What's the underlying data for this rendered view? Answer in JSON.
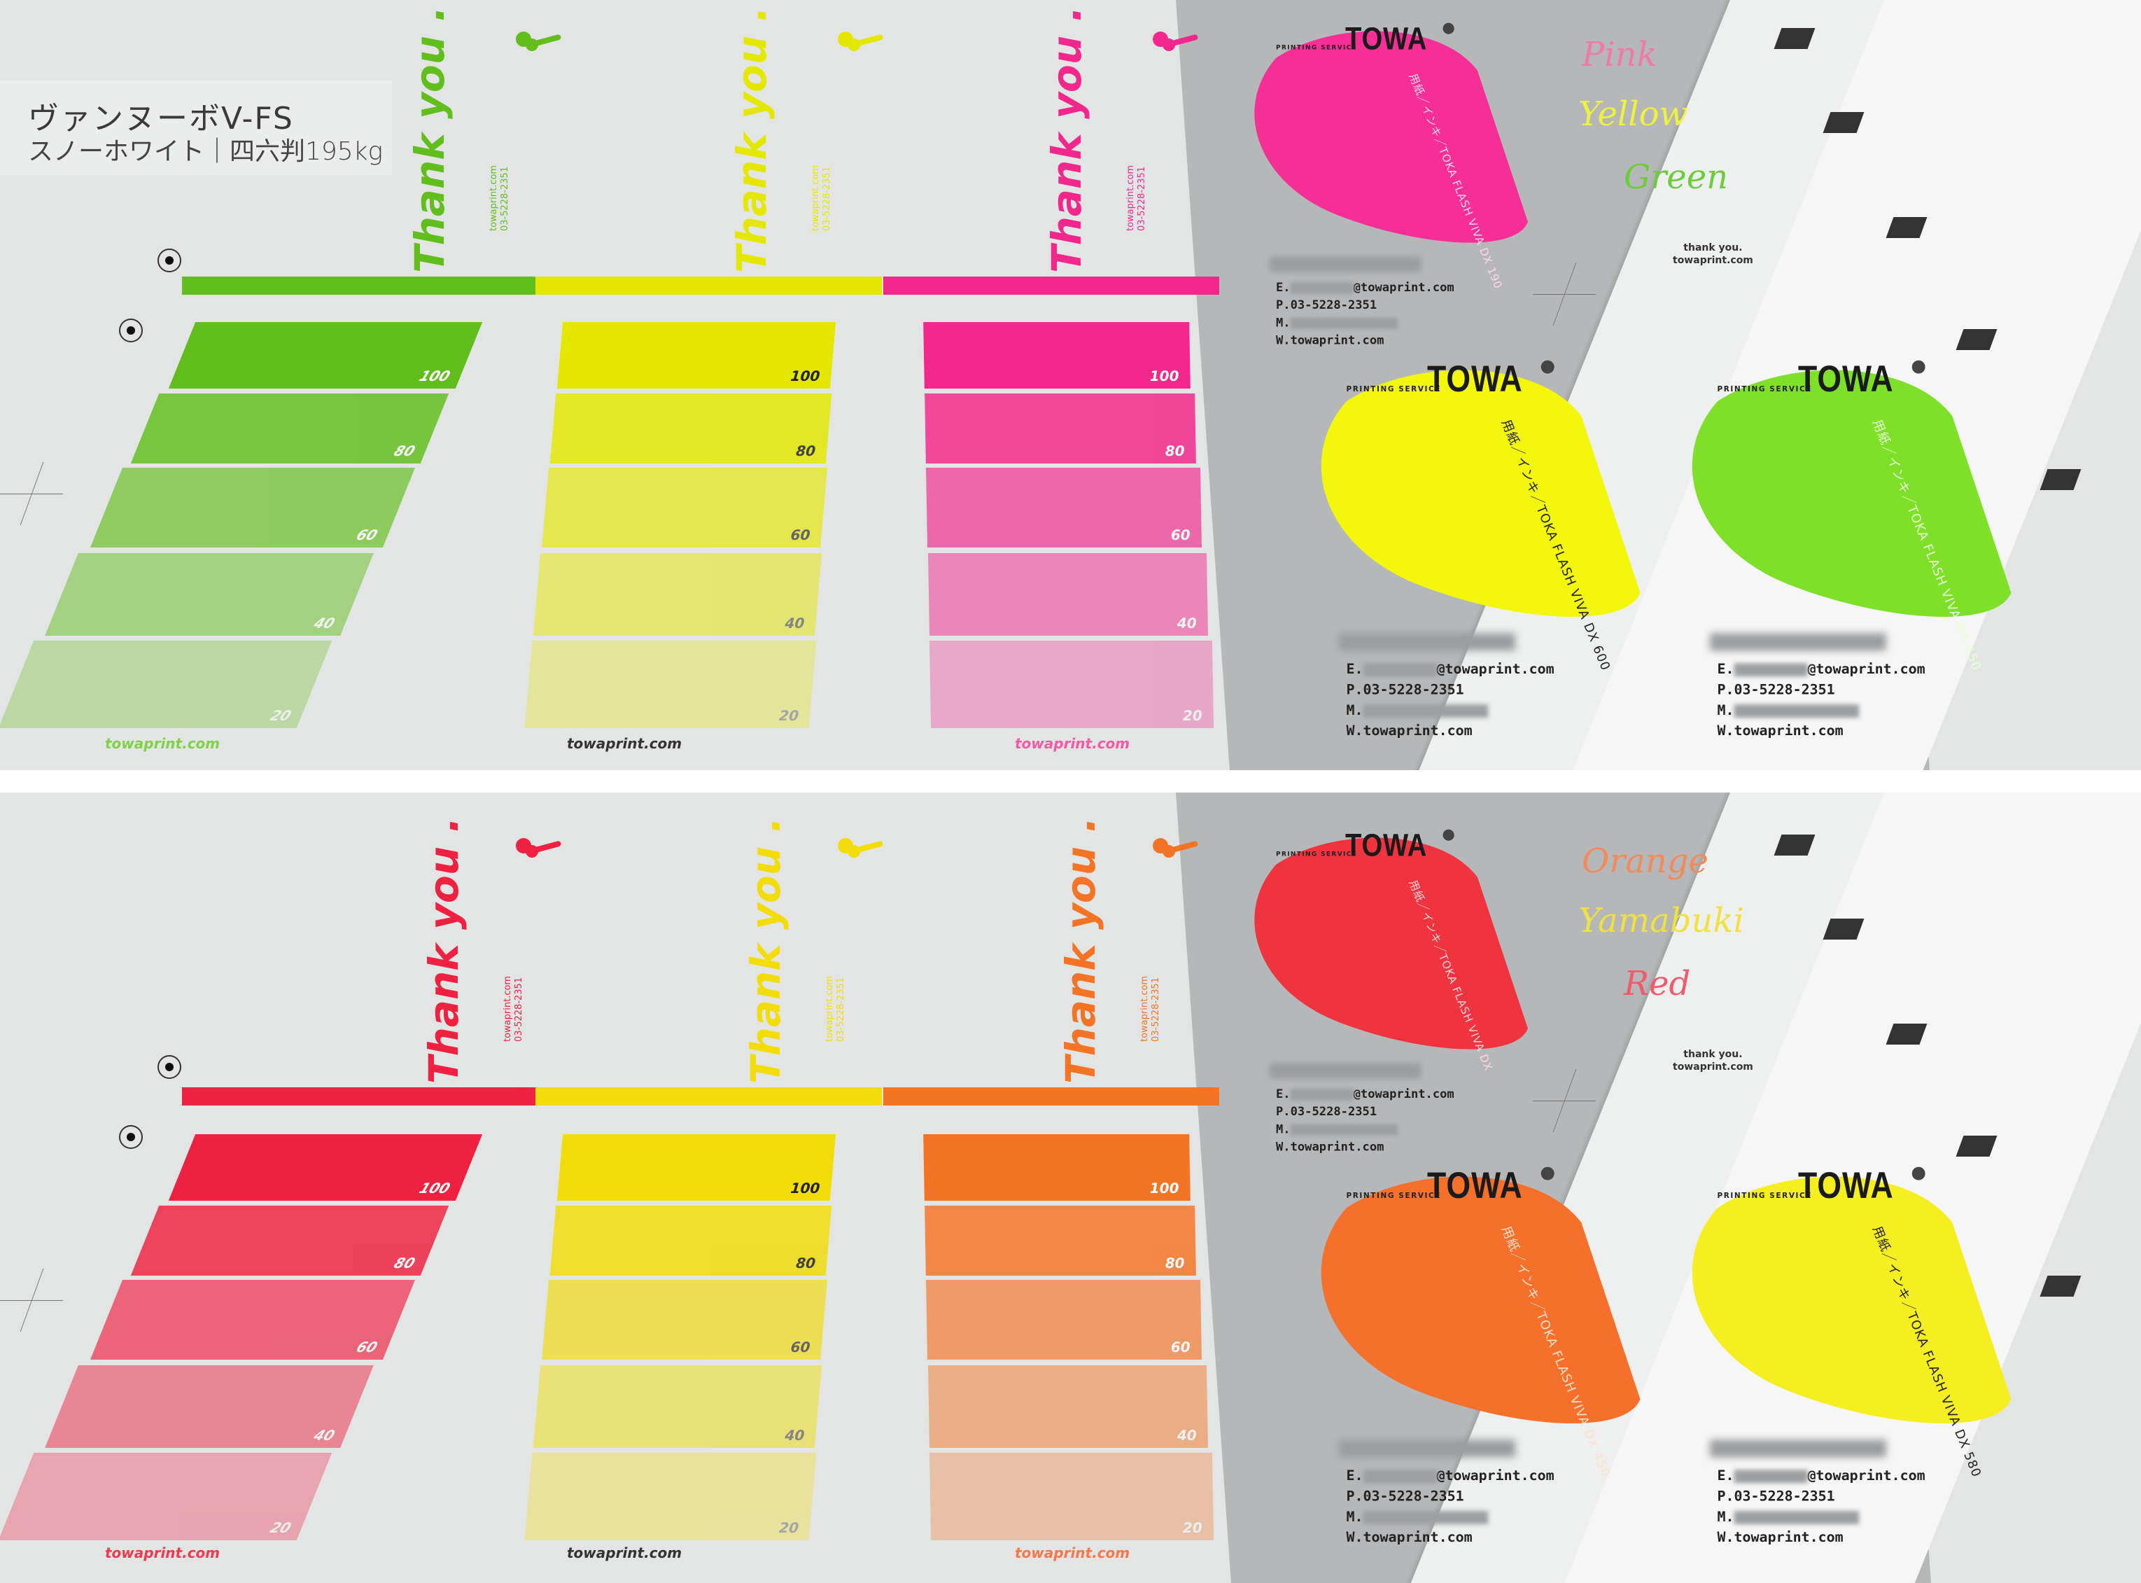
{
  "label": {
    "title": "ヴァンヌーボV-FS",
    "subtitle": "スノーホワイト｜四六判195kg"
  },
  "panels": [
    {
      "id": "top",
      "inks": [
        {
          "name": "green",
          "color": "#62be1c",
          "text_color": "#ffffff",
          "footer_color": "#7fd14a"
        },
        {
          "name": "yellow",
          "color": "#e4e800",
          "text_color": "#222222",
          "footer_color": "#333333"
        },
        {
          "name": "pink",
          "color": "#f2278c",
          "text_color": "#ffffff",
          "footer_color": "#f25aa5"
        }
      ],
      "thank_you": {
        "text": "Thank you .",
        "lines": [
          "towaprint.com",
          "03-5228-2351"
        ]
      },
      "tints": [
        "100",
        "80",
        "60",
        "40",
        "20"
      ],
      "tint_values": [
        100,
        80,
        60,
        40,
        20
      ],
      "footer": "towaprint.com",
      "cards": [
        {
          "color": "#f52f96",
          "ink_text": "用紙／インキ／TOKA FLASH VIVA DX 190",
          "ink_text_color": "#ffd6ea"
        },
        {
          "color": "#f2f70c",
          "ink_text": "用紙／インキ／TOKA FLASH VIVA DX 600",
          "ink_text_color": "#222222"
        },
        {
          "color": "#7fe02a",
          "ink_text": "用紙／インキ／TOKA FLASH VIVA DX 650",
          "ink_text_color": "#e8ffd4"
        }
      ],
      "script_words": [
        {
          "text": "Pink",
          "color": "#f07aa6"
        },
        {
          "text": "Yellow",
          "color": "#eef23a"
        },
        {
          "text": "Green",
          "color": "#6ccc3a"
        }
      ]
    },
    {
      "id": "bottom",
      "inks": [
        {
          "name": "red",
          "color": "#ee2240",
          "text_color": "#ffffff",
          "footer_color": "#ee3a50"
        },
        {
          "name": "yamabuki",
          "color": "#f2dc0a",
          "text_color": "#222222",
          "footer_color": "#333333"
        },
        {
          "name": "orange",
          "color": "#f47426",
          "text_color": "#ffffff",
          "footer_color": "#f4784a"
        }
      ],
      "thank_you": {
        "text": "Thank you .",
        "lines": [
          "towaprint.com",
          "03-5228-2351"
        ]
      },
      "tints": [
        "100",
        "80",
        "60",
        "40",
        "20"
      ],
      "tint_values": [
        100,
        80,
        60,
        40,
        20
      ],
      "footer": "towaprint.com",
      "cards": [
        {
          "color": "#ef3440",
          "ink_text": "用紙／インキ／TOKA FLASH VIVA DX",
          "ink_text_color": "#ffd6d6"
        },
        {
          "color": "#f5702a",
          "ink_text": "用紙／インキ／TOKA FLASH VIVA DX 450",
          "ink_text_color": "#ffe0cc"
        },
        {
          "color": "#f5ef22",
          "ink_text": "用紙／インキ／TOKA FLASH VIVA DX 580",
          "ink_text_color": "#222222"
        }
      ],
      "script_words": [
        {
          "text": "Orange",
          "color": "#f28a5a"
        },
        {
          "text": "Yamabuki",
          "color": "#f0e040"
        },
        {
          "text": "Red",
          "color": "#f05a6a"
        }
      ]
    }
  ],
  "card_common": {
    "printing_service": "PRINTING SERVICE",
    "brand": "TOWA",
    "email_prefix": "E.",
    "email_domain": "@towaprint.com",
    "phone": "P.03-5228-2351",
    "mobile_prefix": "M.",
    "web": "W.towaprint.com",
    "thank_you_small": "thank you.",
    "thank_you_site": "towaprint.com"
  }
}
